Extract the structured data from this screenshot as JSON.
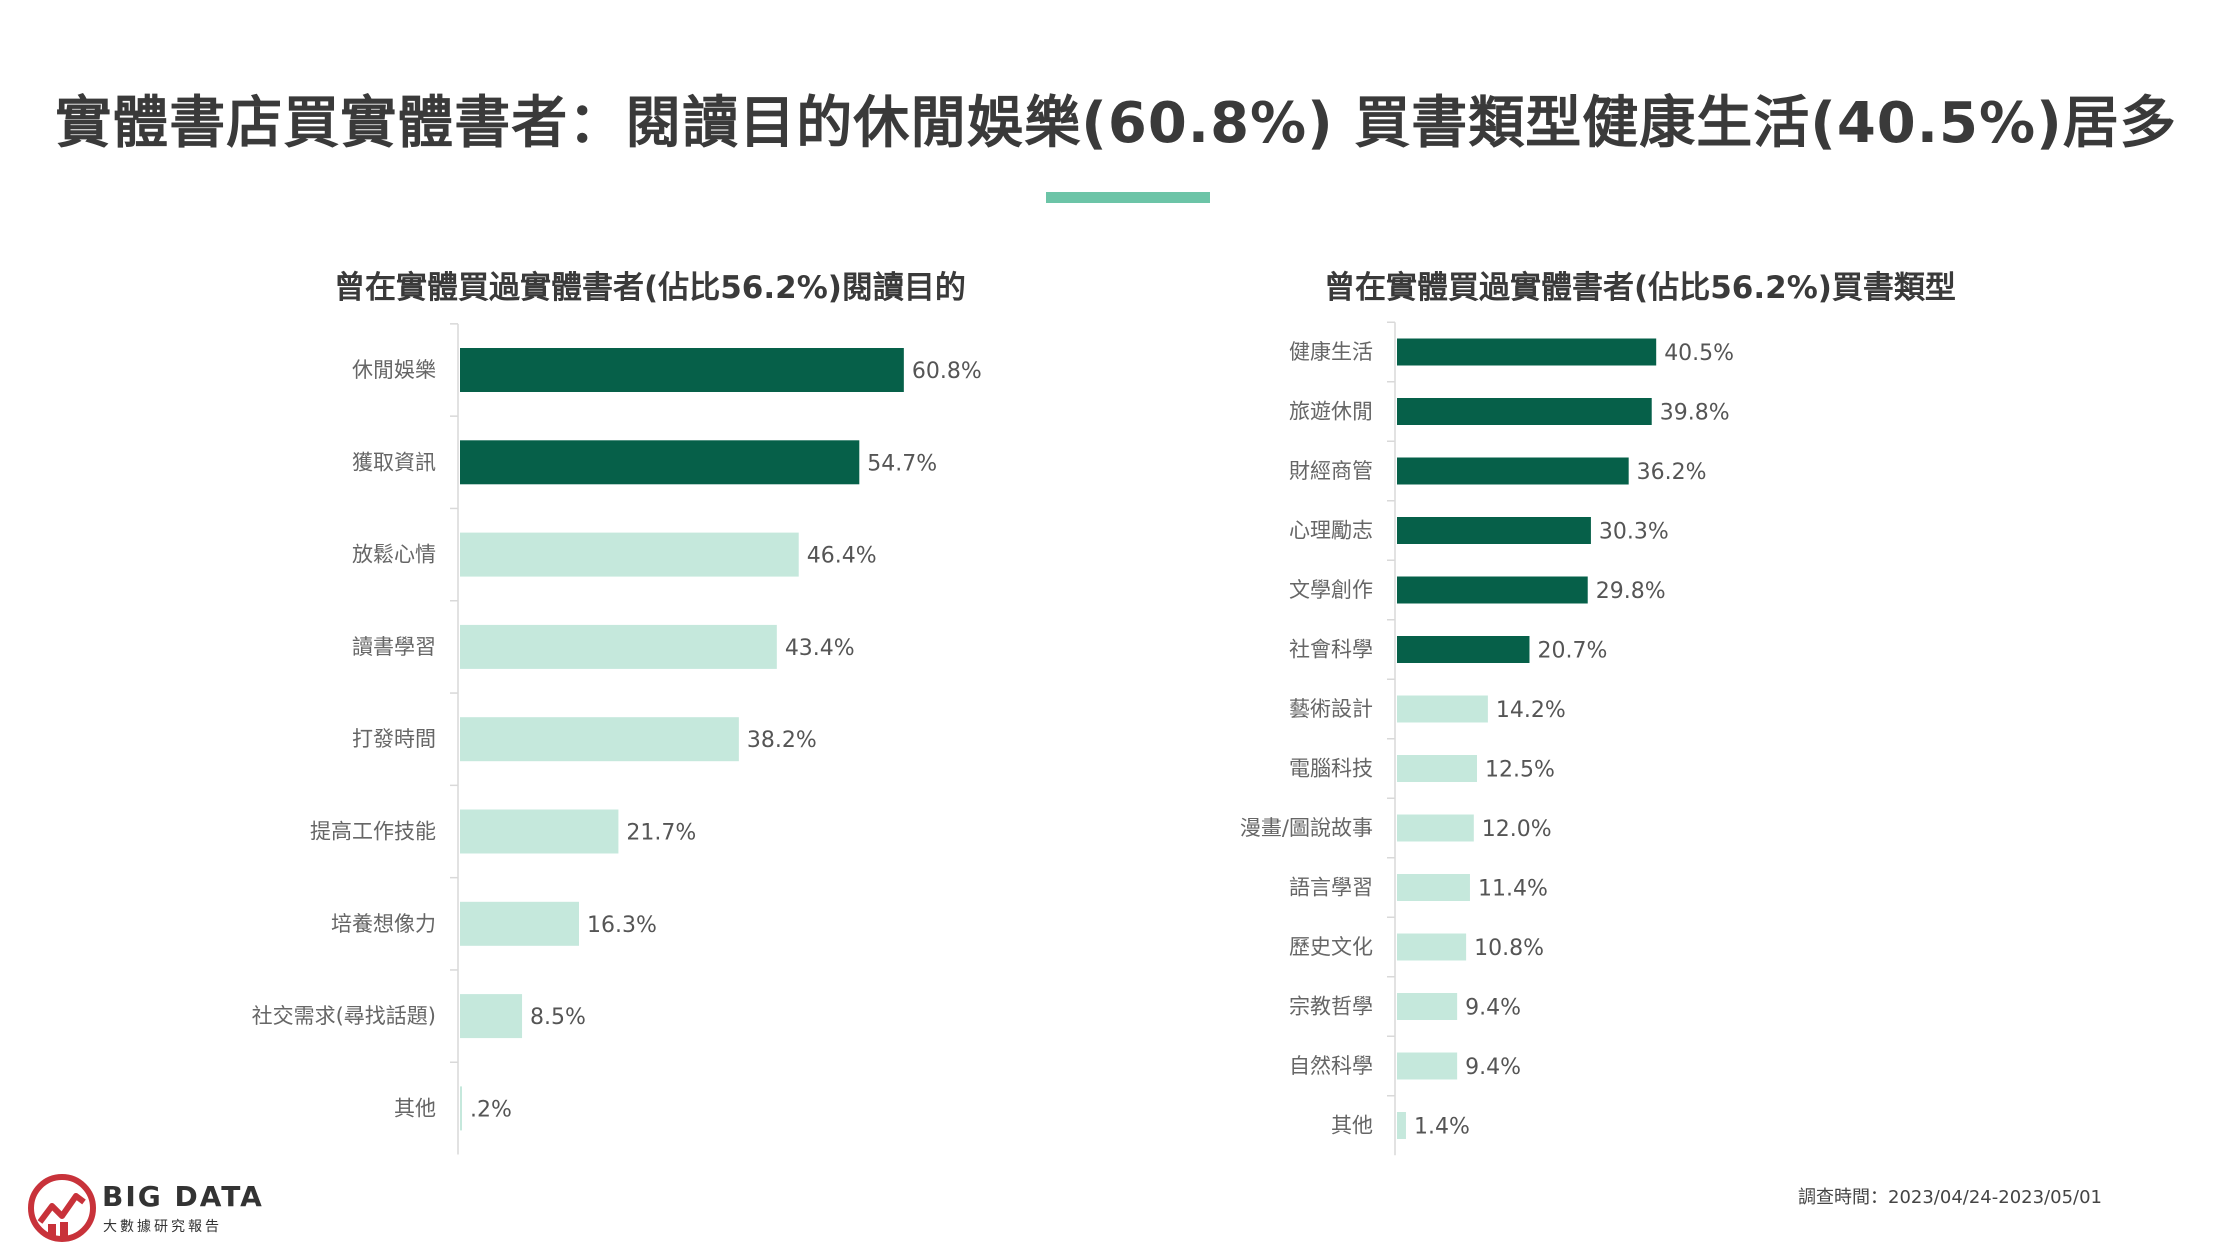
{
  "title": "實體書店買實體書者：閱讀目的休閒娛樂(60.8%) 買書類型健康生活(40.5%)居多",
  "colors": {
    "dark": "#066049",
    "light": "#c5e8dc",
    "accent": "#6cc4a7"
  },
  "chart_data": [
    {
      "type": "bar",
      "orientation": "horizontal",
      "title": "曾在實體買過實體書者(佔比56.2%)閱讀目的",
      "categories": [
        "休閒娛樂",
        "獲取資訊",
        "放鬆心情",
        "讀書學習",
        "打發時間",
        "提高工作技能",
        "培養想像力",
        "社交需求(尋找話題)",
        "其他"
      ],
      "values": [
        60.8,
        54.7,
        46.4,
        43.4,
        38.2,
        21.7,
        16.3,
        8.5,
        0.2
      ],
      "value_labels": [
        "60.8%",
        "54.7%",
        "46.4%",
        "43.4%",
        "38.2%",
        "21.7%",
        "16.3%",
        "8.5%",
        ".2%"
      ],
      "highlight_count": 2,
      "unit": "%"
    },
    {
      "type": "bar",
      "orientation": "horizontal",
      "title": "曾在實體買過實體書者(佔比56.2%)買書類型",
      "categories": [
        "健康生活",
        "旅遊休閒",
        "財經商管",
        "心理勵志",
        "文學創作",
        "社會科學",
        "藝術設計",
        "電腦科技",
        "漫畫/圖說故事",
        "語言學習",
        "歷史文化",
        "宗教哲學",
        "自然科學",
        "其他"
      ],
      "values": [
        40.5,
        39.8,
        36.2,
        30.3,
        29.8,
        20.7,
        14.2,
        12.5,
        12.0,
        11.4,
        10.8,
        9.4,
        9.4,
        1.4
      ],
      "value_labels": [
        "40.5%",
        "39.8%",
        "36.2%",
        "30.3%",
        "29.8%",
        "20.7%",
        "14.2%",
        "12.5%",
        "12.0%",
        "11.4%",
        "10.8%",
        "9.4%",
        "9.4%",
        "1.4%"
      ],
      "highlight_count": 6,
      "unit": "%"
    }
  ],
  "footer": {
    "logo_main": "BIG DATA",
    "logo_sub": "大數據研究報告",
    "survey_date": "調查時間：2023/04/24-2023/05/01"
  }
}
